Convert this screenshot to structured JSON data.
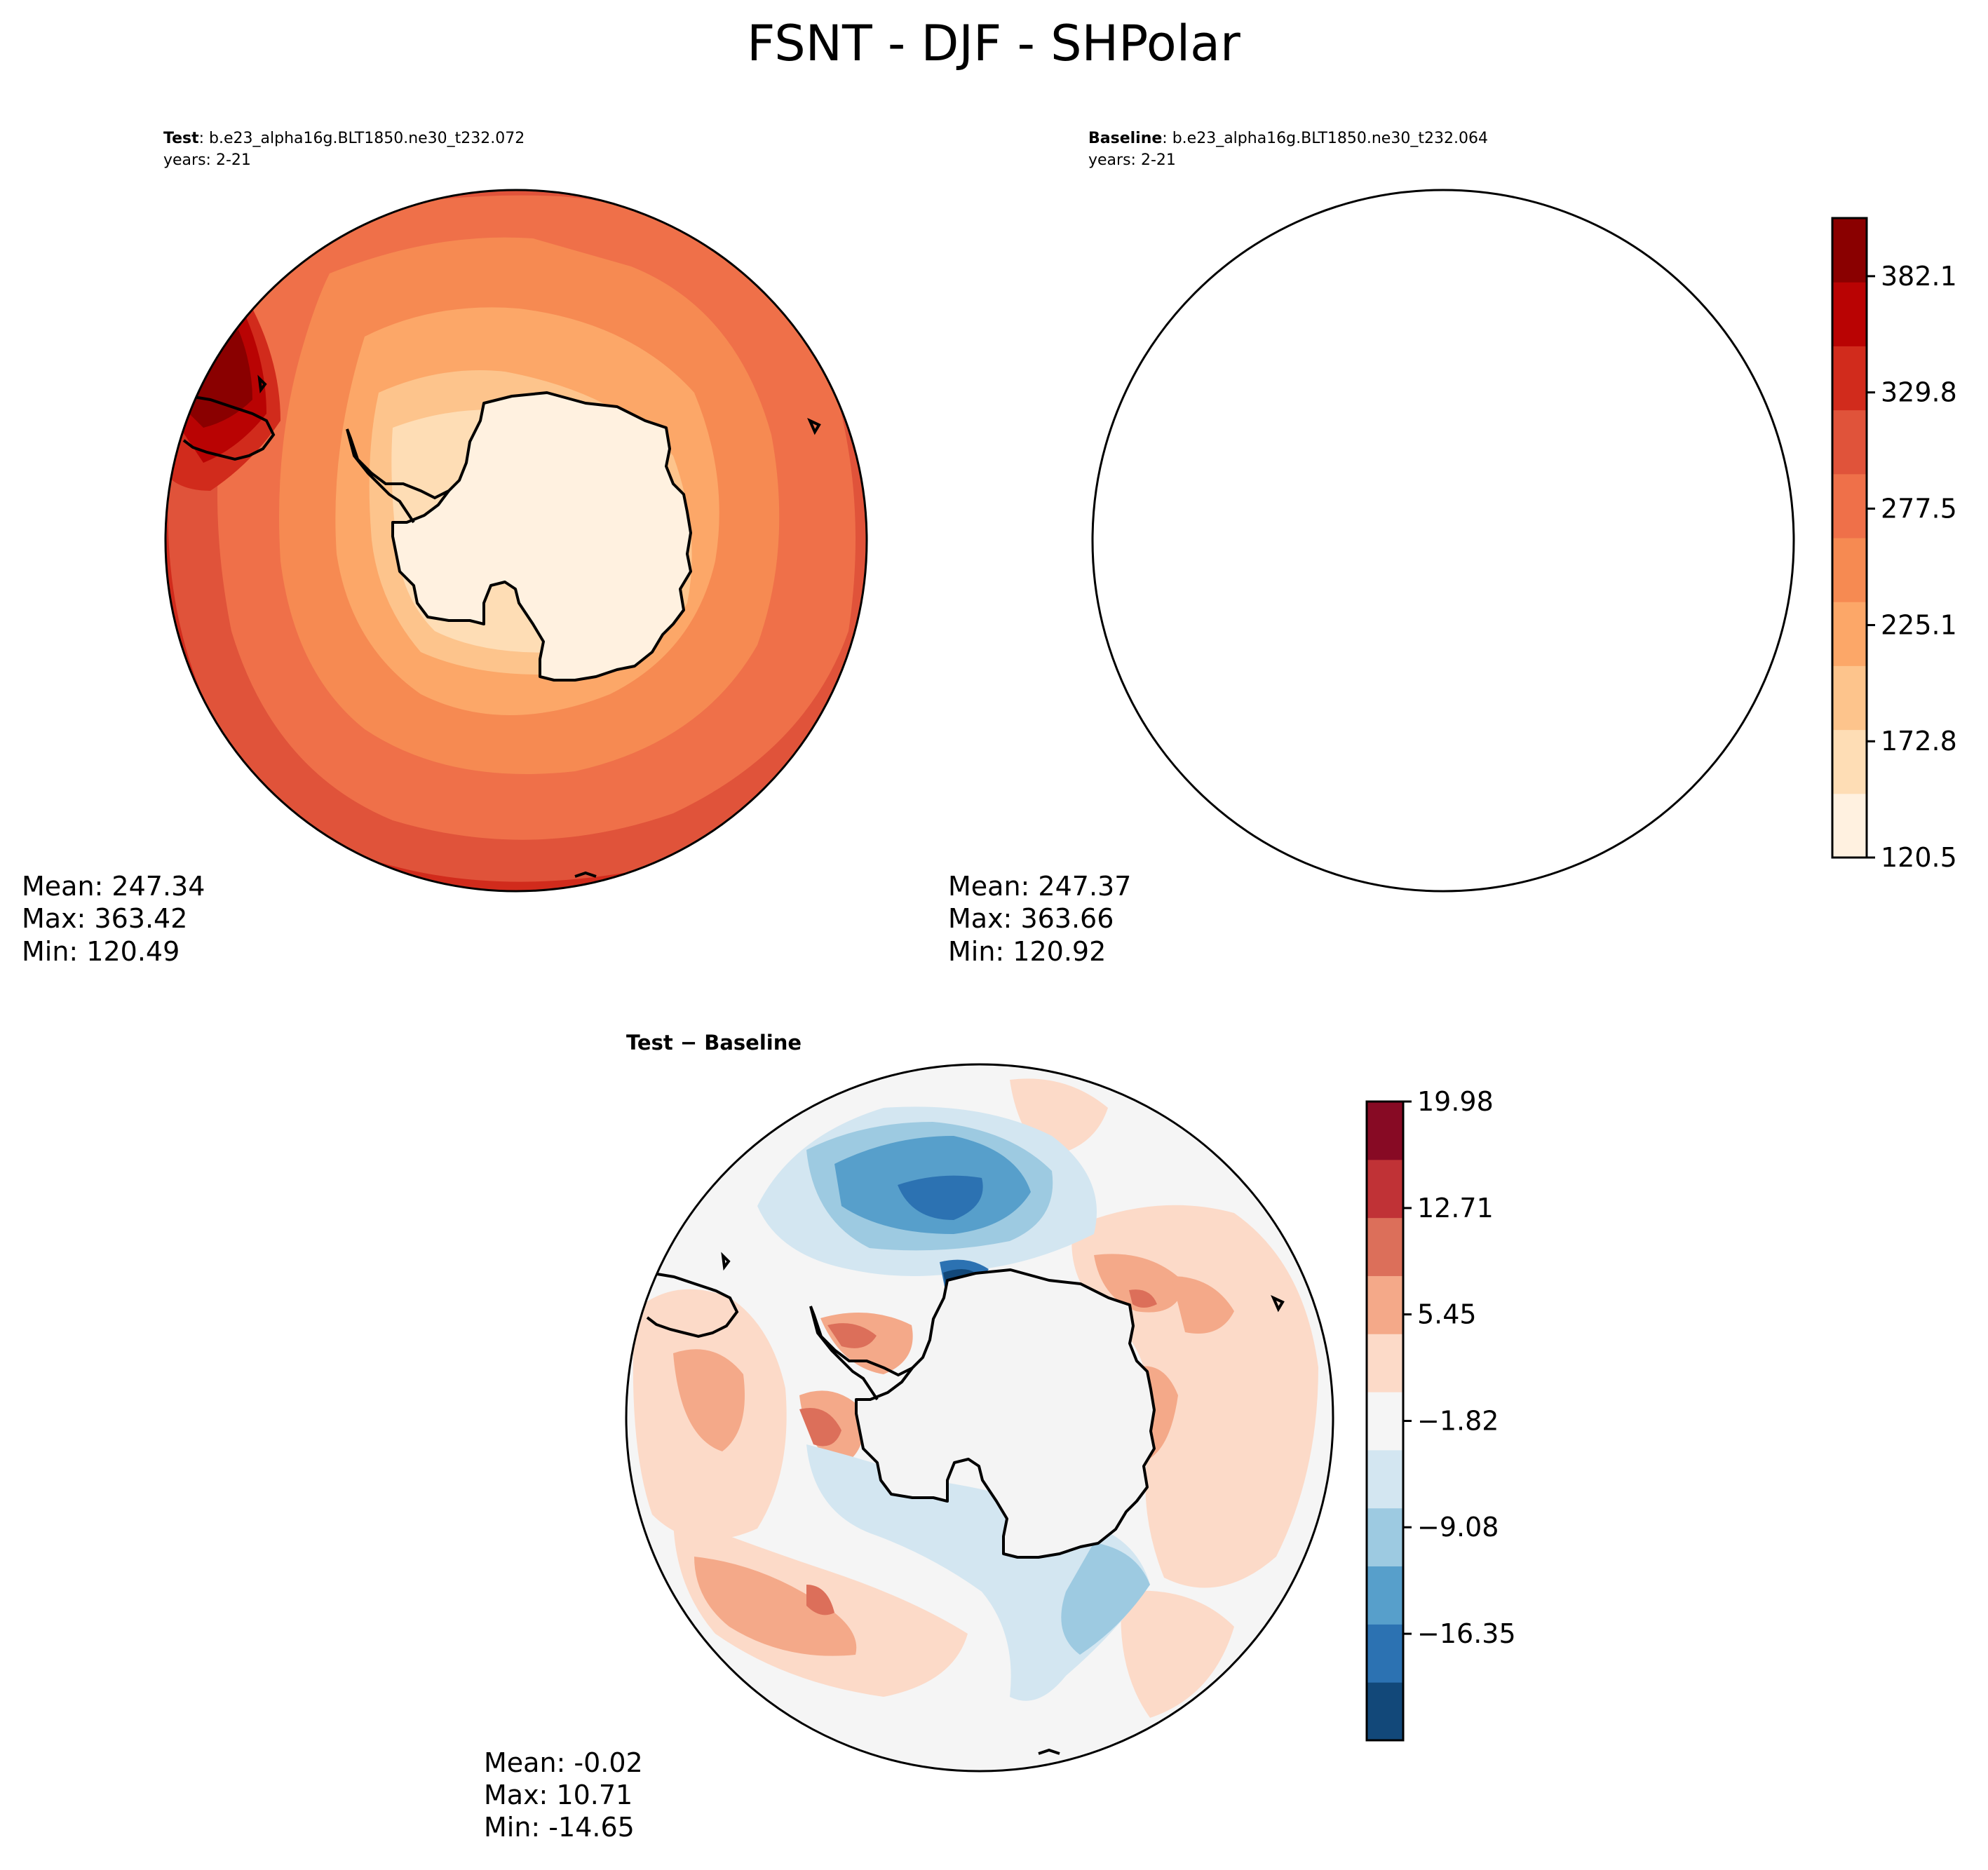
{
  "figure": {
    "title": "FSNT - DJF - SHPolar"
  },
  "panels": [
    {
      "id": "test",
      "label_bold": "Test",
      "label_rest": ": b.e23_alpha16g.BLT1850.ne30_t232.072",
      "years": "years: 2-21",
      "stats": {
        "mean": "Mean: 247.34",
        "max": "Max: 363.42",
        "min": "Min: 120.49"
      }
    },
    {
      "id": "baseline",
      "label_bold": "Baseline",
      "label_rest": ": b.e23_alpha16g.BLT1850.ne30_t232.064",
      "years": "years: 2-21",
      "stats": {
        "mean": "Mean: 247.37",
        "max": "Max: 363.66",
        "min": "Min: 120.92"
      }
    },
    {
      "id": "diff",
      "label_bold": "Test − Baseline",
      "stats": {
        "mean": "Mean: -0.02",
        "max": "Max: 10.71",
        "min": "Min: -14.65"
      }
    }
  ],
  "chart_data": [
    {
      "type": "heatmap",
      "projection": "south polar stereographic",
      "title": "Test: b.e23_alpha16g.BLT1850.ne30_t232.072",
      "variable": "FSNT",
      "season": "DJF",
      "region": "SHPolar",
      "years": "2-21",
      "mean": 247.34,
      "max": 363.42,
      "min": 120.49,
      "colormap": "OrRd-like",
      "levels": [
        120.5,
        146.65,
        172.8,
        198.95,
        225.1,
        251.3,
        277.5,
        303.65,
        329.8,
        355.95,
        382.1,
        408.25
      ],
      "colorbar_ticks": [
        "120.5",
        "172.8",
        "225.1",
        "277.5",
        "329.8",
        "382.1"
      ],
      "colors": [
        "#fff1e0",
        "#feddb5",
        "#fdc48c",
        "#fca768",
        "#f68a52",
        "#ef7049",
        "#e0533a",
        "#d12b1c",
        "#b90303",
        "#8a0000"
      ]
    },
    {
      "type": "heatmap",
      "projection": "south polar stereographic",
      "title": "Baseline: b.e23_alpha16g.BLT1850.ne30_t232.064",
      "variable": "FSNT",
      "season": "DJF",
      "region": "SHPolar",
      "years": "2-21",
      "mean": 247.37,
      "max": 363.66,
      "min": 120.92,
      "colormap": "OrRd-like",
      "levels": [
        120.5,
        146.65,
        172.8,
        198.95,
        225.1,
        251.3,
        277.5,
        303.65,
        329.8,
        355.95,
        382.1,
        408.25
      ],
      "colorbar_ticks": [
        "120.5",
        "172.8",
        "225.1",
        "277.5",
        "329.8",
        "382.1"
      ],
      "colors": [
        "#fff1e0",
        "#feddb5",
        "#fdc48c",
        "#fca768",
        "#f68a52",
        "#ef7049",
        "#e0533a",
        "#d12b1c",
        "#b90303",
        "#8a0000"
      ]
    },
    {
      "type": "heatmap",
      "projection": "south polar stereographic",
      "title": "Test − Baseline",
      "mean": -0.02,
      "max": 10.71,
      "min": -14.65,
      "colormap": "RdBu_r",
      "levels": [
        -23.62,
        -19.99,
        -16.35,
        -12.72,
        -9.08,
        -5.45,
        -1.82,
        1.82,
        5.45,
        9.08,
        12.71,
        16.35,
        19.98
      ],
      "colorbar_ticks": [
        "−16.35",
        "−9.08",
        "−1.82",
        "5.45",
        "12.71",
        "19.98"
      ],
      "colors": [
        "#124879",
        "#2c72b2",
        "#579fcb",
        "#9dcae1",
        "#d3e6f1",
        "#f5f5f5",
        "#fcdac8",
        "#f4a989",
        "#dc6f5a",
        "#c03236",
        "#870a24"
      ]
    }
  ]
}
